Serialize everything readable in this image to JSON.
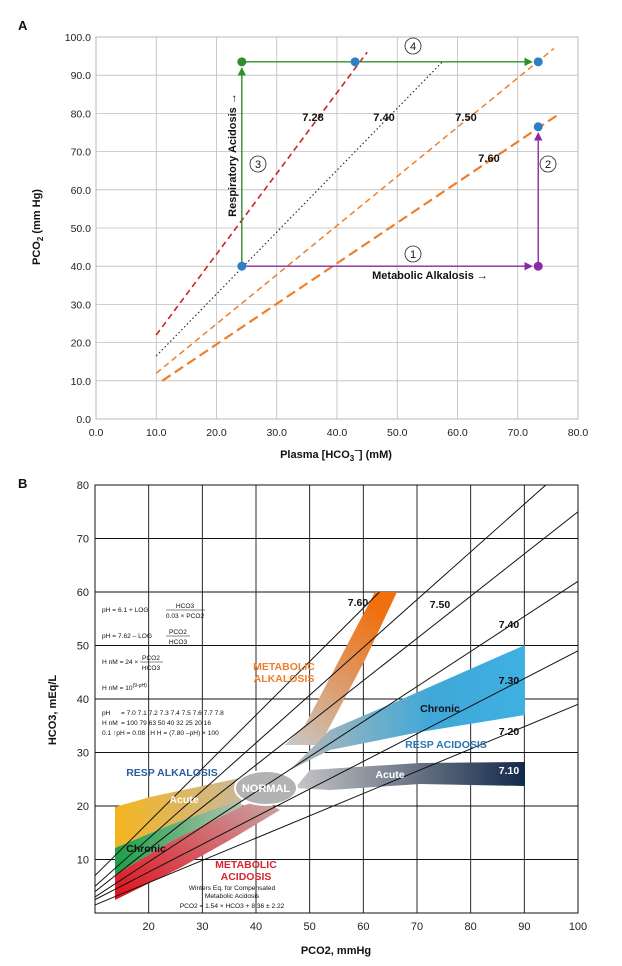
{
  "chart_data": [
    {
      "type": "line",
      "panel_label": "A",
      "xlabel_main": "Plasma [HCO",
      "xlabel_sub": "3",
      "xlabel_sup": "−",
      "xlabel_tail": "] (mM)",
      "ylabel_main": "PCO",
      "ylabel_sub": "2",
      "ylabel_tail": " (mm Hg)",
      "xlim": [
        0,
        80
      ],
      "ylim": [
        0,
        100
      ],
      "x_ticks": [
        "0.0",
        "10.0",
        "20.0",
        "30.0",
        "40.0",
        "50.0",
        "60.0",
        "70.0",
        "80.0"
      ],
      "y_ticks": [
        "0.0",
        "10.0",
        "20.0",
        "30.0",
        "40.0",
        "50.0",
        "60.0",
        "70.0",
        "80.0",
        "90.0",
        "100.0"
      ],
      "grid": true,
      "isopleths": [
        {
          "label": "7.28",
          "color": "#d0202a",
          "x": [
            10,
            45
          ],
          "y": [
            22,
            96
          ]
        },
        {
          "label": "7.40",
          "color": "#222222",
          "x": [
            10,
            57.5
          ],
          "y": [
            16.5,
            93.5
          ]
        },
        {
          "label": "7.50",
          "color": "#ee7f2d",
          "x": [
            10,
            76
          ],
          "y": [
            12,
            97
          ]
        },
        {
          "label": "7.60",
          "color": "#ee7f2d",
          "x": [
            11,
            77
          ],
          "y": [
            10,
            80
          ]
        }
      ],
      "points": [
        {
          "x": 24.2,
          "y": 40,
          "color": "#2e7fc4"
        },
        {
          "x": 73.4,
          "y": 40,
          "color": "#8a2aa8"
        },
        {
          "x": 73.4,
          "y": 76.5,
          "color": "#2e7fc4"
        },
        {
          "x": 73.4,
          "y": 93.5,
          "color": "#2e7fc4"
        },
        {
          "x": 24.2,
          "y": 93.5,
          "color": "#2f8f2f"
        },
        {
          "x": 43,
          "y": 93.5,
          "color": "#2e7fc4"
        }
      ],
      "arrows": [
        {
          "step": "1",
          "color": "#8a2aa8",
          "from": [
            24.2,
            40
          ],
          "to": [
            73.4,
            40
          ],
          "annotation": "Metabolic Alkalosis →"
        },
        {
          "step": "2",
          "color": "#8a2aa8",
          "from": [
            73.4,
            40
          ],
          "to": [
            73.4,
            76.5
          ],
          "annotation": ""
        },
        {
          "step": "3",
          "color": "#2f8f2f",
          "from": [
            24.2,
            40
          ],
          "to": [
            24.2,
            93.5
          ],
          "annotation": "Respiratory Acidosis →"
        },
        {
          "step": "4",
          "color": "#2f8f2f",
          "from": [
            24.2,
            93.5
          ],
          "to": [
            73.4,
            93.5
          ],
          "annotation": ""
        }
      ]
    },
    {
      "type": "line",
      "panel_label": "B",
      "xlabel": "PCO2, mmHg",
      "ylabel": "HCO3, mEq/L",
      "xlim": [
        10,
        100
      ],
      "ylim": [
        0,
        80
      ],
      "x_ticks": [
        "20",
        "30",
        "40",
        "50",
        "60",
        "70",
        "80",
        "90",
        "100"
      ],
      "y_ticks": [
        "10",
        "20",
        "30",
        "40",
        "50",
        "60",
        "70",
        "80"
      ],
      "grid": true,
      "isopleths": [
        {
          "label": "7.60",
          "x": [
            10,
            63
          ],
          "y": [
            7,
            60
          ]
        },
        {
          "label": "7.50",
          "x": [
            10,
            94
          ],
          "y": [
            5,
            80
          ]
        },
        {
          "label": "7.40",
          "x": [
            10,
            100
          ],
          "y": [
            4,
            75
          ]
        },
        {
          "label": "7.30",
          "x": [
            10,
            100
          ],
          "y": [
            3,
            62
          ]
        },
        {
          "label": "7.20",
          "x": [
            10,
            100
          ],
          "y": [
            2.5,
            49
          ]
        },
        {
          "label": "7.10",
          "x": [
            10,
            100
          ],
          "y": [
            1.5,
            39
          ]
        }
      ],
      "regions": [
        {
          "label": "METABOLIC ALKALOSIS",
          "color": "#ee7f2d"
        },
        {
          "label": "Chronic",
          "color": "#3fa8d8"
        },
        {
          "label": "RESP ACIDOSIS",
          "color": "#3fa8d8"
        },
        {
          "label": "Acute",
          "color": "#1f3a5e"
        },
        {
          "label": "NORMAL",
          "color": "#9a9a9a"
        },
        {
          "label": "RESP ALKALOSIS",
          "color": "#f5b51e"
        },
        {
          "label": "Acute",
          "color": "#f5b51e"
        },
        {
          "label": "Chronic",
          "color": "#22a24a"
        },
        {
          "label": "METABOLIC ACIDOSIS",
          "color": "#d62630"
        }
      ],
      "equations": {
        "eq1_left": "pH = 6.1 + LOG",
        "eq1_num": "HCO3",
        "eq1_den": "0.03 × PCO2",
        "eq2_left": "pH = 7.62 – LOG",
        "eq2_num": "PCO2",
        "eq2_den": "HCO3",
        "eq3_left": "H nM = 24 ×",
        "eq3_num": "PCO2",
        "eq3_den": "HCO3",
        "eq4": "H nM = 10",
        "eq4_sup": "(9-pH)",
        "ph_row_label": "pH",
        "ph_row_values": "= 7.0  7.1  7.2  7.3  7.4  7.5  7.6  7.7  7.8",
        "h_row_label": "H nM",
        "h_row_values": "= 100  79  63  50  40  32  25  20  16",
        "rule": "0.1 ↑pH = 0.08 ↓H     H = (7.80 –pH) × 100"
      },
      "winters": {
        "line1": "Winters Eq. for Compensated",
        "line2": "Metabolic Acidosis",
        "line3": "PCO2 = 1.54 × HCO3 + 8.36 ± 2.22"
      }
    }
  ]
}
